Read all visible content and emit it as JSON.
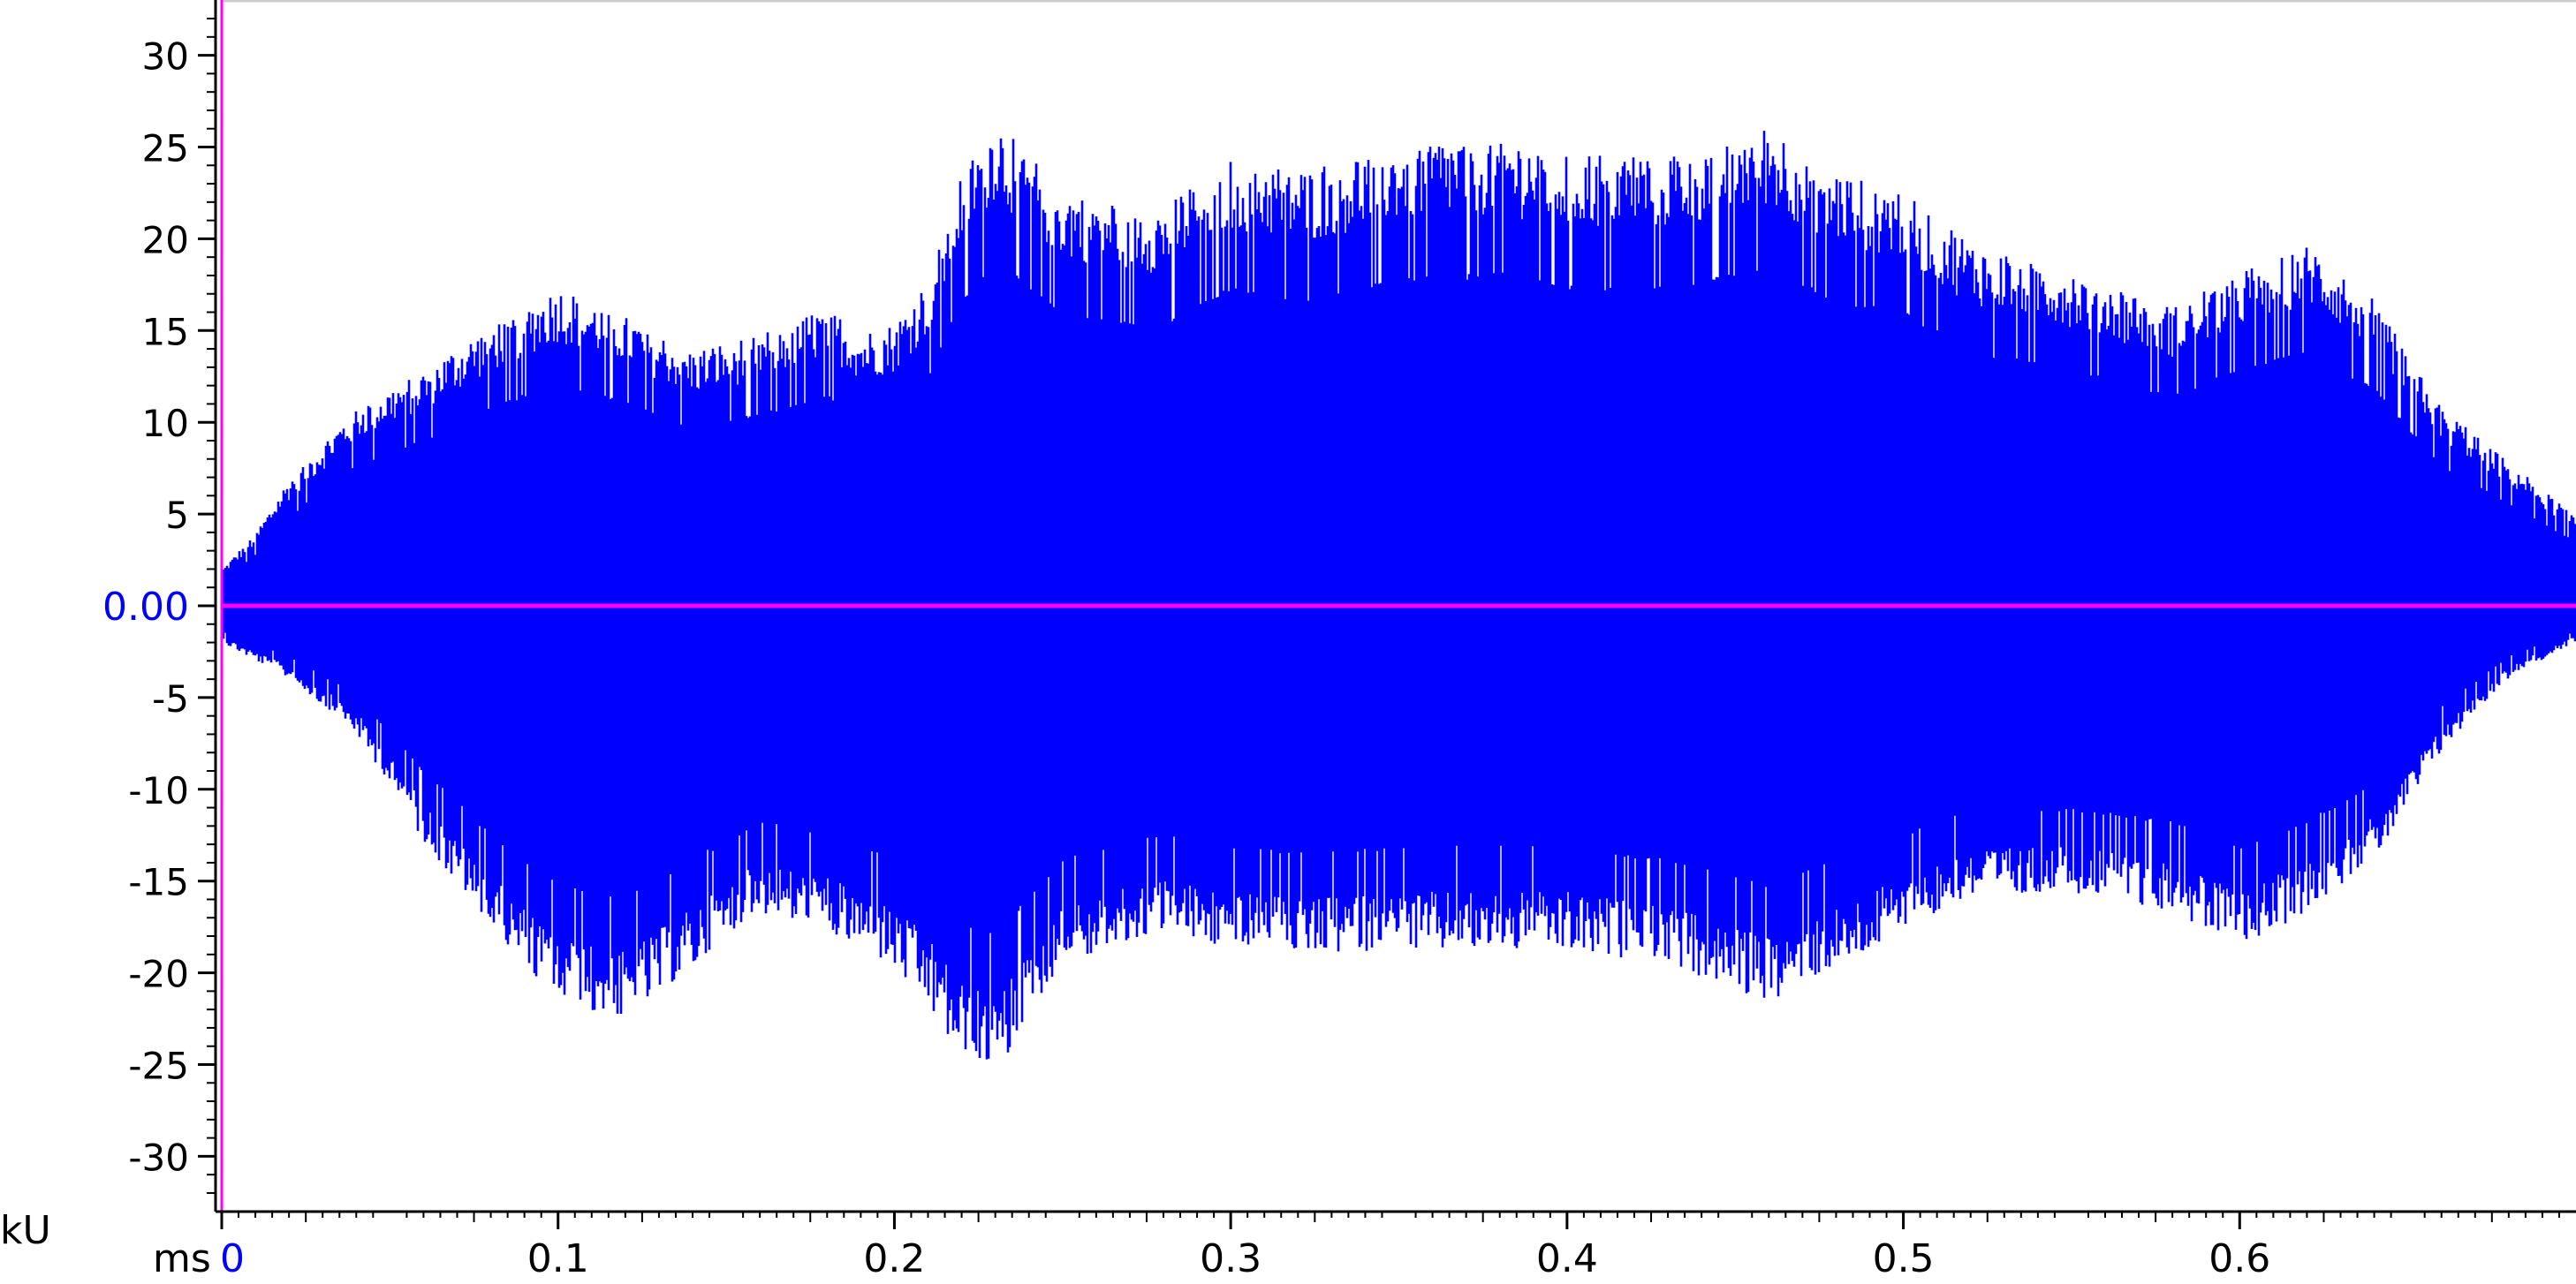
{
  "chart_data": {
    "type": "area",
    "title": "",
    "xlabel": "ms",
    "ylabel": "kU",
    "xlim": [
      0,
      0.7
    ],
    "ylim": [
      -32.5,
      32.5
    ],
    "grid": false,
    "x_ticks": [
      {
        "value": 0,
        "label": "0"
      },
      {
        "value": 0.1,
        "label": "0.1"
      },
      {
        "value": 0.2,
        "label": "0.2"
      },
      {
        "value": 0.3,
        "label": "0.3"
      },
      {
        "value": 0.4,
        "label": "0.4"
      },
      {
        "value": 0.5,
        "label": "0.5"
      },
      {
        "value": 0.6,
        "label": "0.6"
      }
    ],
    "y_ticks": [
      {
        "value": 30,
        "label": "30"
      },
      {
        "value": 25,
        "label": "25"
      },
      {
        "value": 20,
        "label": "20"
      },
      {
        "value": 15,
        "label": "15"
      },
      {
        "value": 10,
        "label": "10"
      },
      {
        "value": 5,
        "label": "5"
      },
      {
        "value": 0,
        "label": "0.00"
      },
      {
        "value": -5,
        "label": "-5"
      },
      {
        "value": -10,
        "label": "-10"
      },
      {
        "value": -15,
        "label": "-15"
      },
      {
        "value": -20,
        "label": "-20"
      },
      {
        "value": -25,
        "label": "-25"
      },
      {
        "value": -30,
        "label": "-30"
      }
    ],
    "envelope": {
      "x": [
        0,
        0.01,
        0.02,
        0.04,
        0.06,
        0.08,
        0.1,
        0.12,
        0.14,
        0.16,
        0.18,
        0.19,
        0.2,
        0.21,
        0.22,
        0.23,
        0.25,
        0.28,
        0.3,
        0.32,
        0.35,
        0.38,
        0.4,
        0.43,
        0.46,
        0.48,
        0.5,
        0.52,
        0.55,
        0.58,
        0.6,
        0.62,
        0.64,
        0.66,
        0.68,
        0.7
      ],
      "upper": [
        2,
        4,
        7,
        11,
        13,
        15.5,
        17.5,
        16,
        14,
        15,
        16.5,
        15,
        15.5,
        18,
        24,
        27,
        23,
        22,
        25,
        24,
        25.5,
        26,
        25,
        25,
        26.5,
        24,
        23,
        20,
        18.5,
        16.5,
        18.5,
        20,
        17,
        11,
        8,
        5
      ],
      "lower": [
        -2,
        -3,
        -4,
        -7,
        -13,
        -18,
        -22,
        -23,
        -20,
        -17,
        -18,
        -19,
        -20,
        -22,
        -25,
        -26,
        -20,
        -18,
        -19,
        -19.5,
        -19,
        -19,
        -19,
        -20,
        -22,
        -20,
        -18,
        -16,
        -16,
        -17,
        -19,
        -17,
        -14,
        -8,
        -4,
        -2
      ]
    },
    "colors": {
      "signal": "#0000ff",
      "zero_line": "#ff00ff",
      "zero_label": "#0000ff",
      "axis": "#000000"
    }
  }
}
